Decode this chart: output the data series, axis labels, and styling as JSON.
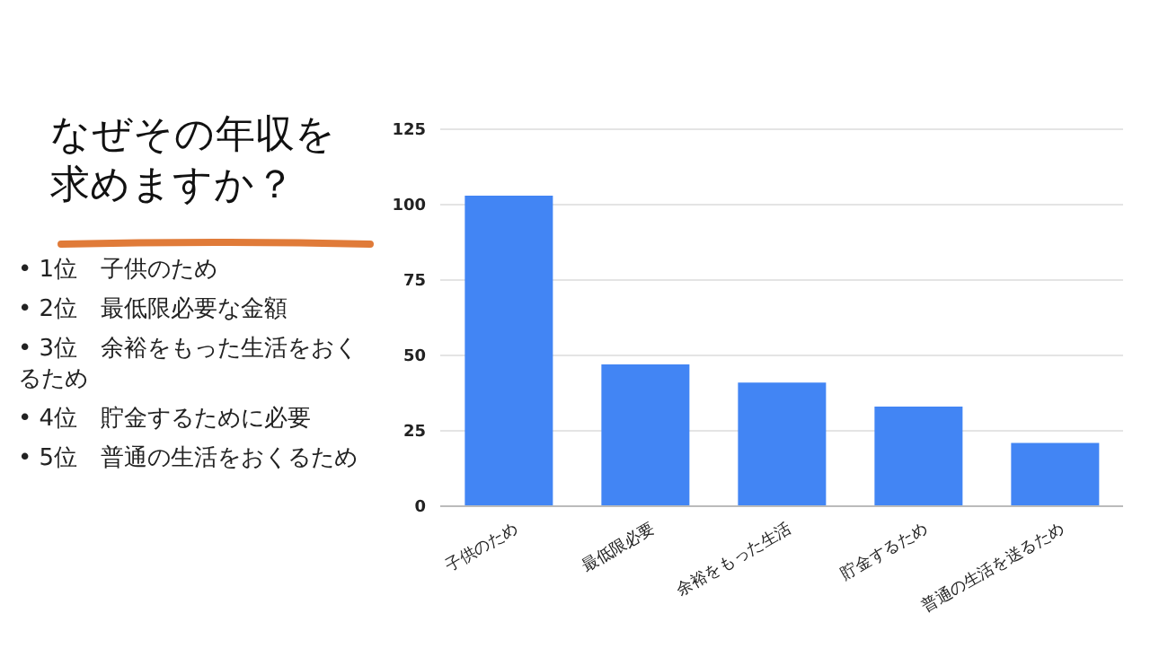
{
  "chart_data": {
    "type": "bar",
    "title": "なぜその年収を求めますか？",
    "annotations": [
      "• 1位　子供のため",
      "• 2位　最低限必要な金額",
      "• 3位　余裕をもった生活をおくるため",
      "• 4位　貯金するために必要",
      "• 5位　普通の生活をおくるため"
    ],
    "categories": [
      "子供のため",
      "最低限必要",
      "余裕をもった生活",
      "貯金するため",
      "普通の生活を送るため"
    ],
    "values": [
      103,
      47,
      41,
      33,
      21
    ],
    "color": "#4285f4",
    "ylim": [
      0,
      125
    ],
    "yticks": [
      0,
      25,
      50,
      75,
      100,
      125
    ],
    "grid": "y"
  }
}
